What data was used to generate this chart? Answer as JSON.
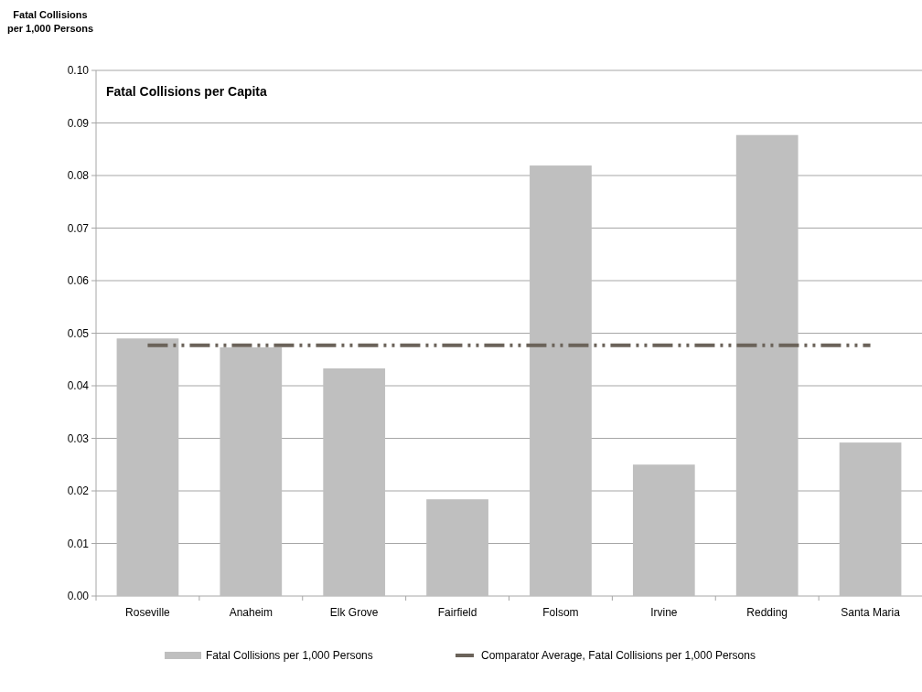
{
  "chart_data": {
    "type": "bar",
    "title": "Fatal Collisions per Capita",
    "ylabel": "Fatal Collisions\nper 1,000 Persons",
    "categories": [
      "Roseville",
      "Anaheim",
      "Elk Grove",
      "Fairfield",
      "Folsom",
      "Irvine",
      "Redding",
      "Santa Maria"
    ],
    "series": [
      {
        "name": "Fatal Collisions per 1,000 Persons",
        "color": "#bfbfbf",
        "values": [
          0.049,
          0.0473,
          0.0433,
          0.0184,
          0.0819,
          0.025,
          0.0877,
          0.0292
        ]
      },
      {
        "name": "Comparator Average, Fatal Collisions per 1,000 Persons",
        "type": "line",
        "color": "#6b635a",
        "line_style": "dashed",
        "values": [
          0.0477,
          0.0477,
          0.0477,
          0.0477,
          0.0477,
          0.0477,
          0.0477,
          0.0477
        ]
      }
    ],
    "ylim": [
      0,
      0.1
    ],
    "yticks": [
      {
        "value": 0,
        "label": "0.00"
      },
      {
        "value": 0.01,
        "label": "0.01"
      },
      {
        "value": 0.02,
        "label": "0.02"
      },
      {
        "value": 0.03,
        "label": "0.03"
      },
      {
        "value": 0.04,
        "label": "0.04"
      },
      {
        "value": 0.05,
        "label": "0.05"
      },
      {
        "value": 0.06,
        "label": "0.06"
      },
      {
        "value": 0.07,
        "label": "0.07"
      },
      {
        "value": 0.08,
        "label": "0.08"
      },
      {
        "value": 0.09,
        "label": "0.09"
      },
      {
        "value": 0.1,
        "label": "0.10"
      }
    ],
    "grid": "y",
    "legend": "bottom"
  }
}
